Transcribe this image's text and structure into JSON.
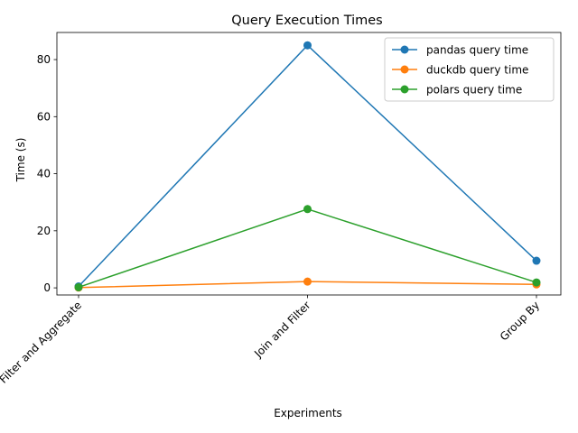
{
  "chart_data": {
    "type": "line",
    "title": "Query Execution Times",
    "xlabel": "Experiments",
    "ylabel": "Time (s)",
    "categories": [
      "Filter and Aggregate",
      "Join and Filter",
      "Group By"
    ],
    "ylim": [
      -2.5,
      89.5
    ],
    "yticks": [
      0,
      20,
      40,
      60,
      80
    ],
    "grid": false,
    "legend_position": "top-right",
    "series": [
      {
        "name": "pandas query time",
        "values": [
          0.5,
          85.0,
          9.5
        ],
        "color": "#1f77b4"
      },
      {
        "name": "duckdb query time",
        "values": [
          0.1,
          2.2,
          1.2
        ],
        "color": "#ff7f0e"
      },
      {
        "name": "polars query time",
        "values": [
          0.2,
          27.6,
          1.9
        ],
        "color": "#2ca02c"
      }
    ]
  }
}
